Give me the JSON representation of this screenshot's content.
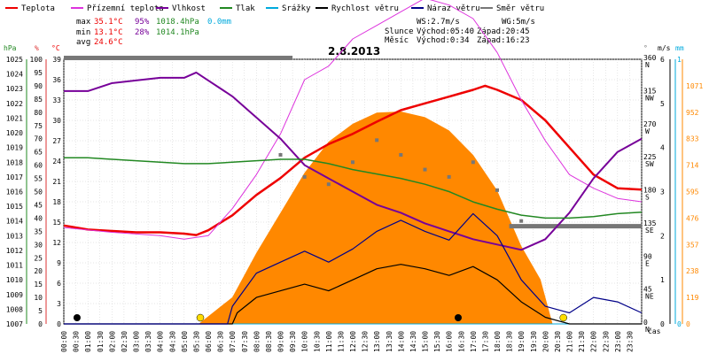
{
  "legend": [
    {
      "label": "Teplota",
      "color": "#ee0000"
    },
    {
      "label": "Přízemní teplota",
      "color": "#dd33dd"
    },
    {
      "label": "Vlhkost",
      "color": "#770099"
    },
    {
      "label": "Tlak",
      "color": "#228822"
    },
    {
      "label": "Srážky",
      "color": "#00aadd"
    },
    {
      "label": "Rychlost větru",
      "color": "#000000"
    },
    {
      "label": "Náraz větru",
      "color": "#000088"
    },
    {
      "label": "Směr větru",
      "color": "#777777"
    }
  ],
  "stats": {
    "max_label": "max",
    "max_temp": "35.1°C",
    "max_hum": "95%",
    "max_press": "1018.4hPa",
    "max_rain": "0.0mm",
    "min_label": "min",
    "min_temp": "13.1°C",
    "min_hum": "28%",
    "min_press": "1014.1hPa",
    "avg_label": "avg",
    "avg_temp": "24.6°C"
  },
  "wind_sun": {
    "ws": "WS:2.7m/s",
    "wg": "WG:5m/s",
    "sun_label": "Slunce",
    "sunrise": "Východ:05:40",
    "sunset": "Západ:20:45",
    "moon_label": "Měsíc",
    "moonrise": "Východ:0:34",
    "moonset": "Západ:16:23"
  },
  "date": "2.8.2013",
  "time_label": "čas",
  "colors": {
    "temp": "#ee0000",
    "ground": "#dd33dd",
    "hum": "#770099",
    "press": "#228822",
    "rain": "#00aadd",
    "wind": "#000000",
    "gust": "#000088",
    "dir": "#777777",
    "solar": "#ff8800",
    "solar_line": "#ff8800"
  },
  "chart_data": {
    "type": "line",
    "date": "2.8.2013",
    "x_ticks": [
      "00:00",
      "00:30",
      "01:00",
      "01:30",
      "02:00",
      "02:30",
      "03:00",
      "03:30",
      "04:00",
      "04:30",
      "05:00",
      "05:30",
      "06:00",
      "06:30",
      "07:00",
      "07:30",
      "08:00",
      "08:30",
      "09:00",
      "09:30",
      "10:00",
      "10:30",
      "11:00",
      "11:30",
      "12:00",
      "12:30",
      "13:00",
      "13:30",
      "14:00",
      "14:30",
      "15:00",
      "15:30",
      "16:00",
      "16:30",
      "17:00",
      "17:30",
      "18:00",
      "18:30",
      "19:00",
      "19:30",
      "20:00",
      "20:30",
      "21:00",
      "21:30",
      "22:00",
      "22:30",
      "23:00",
      "23:30"
    ],
    "axes": {
      "pressure": {
        "unit": "hPa",
        "ticks": [
          "1007",
          "1008",
          "1009",
          "1010",
          "1011",
          "1012",
          "1013",
          "1014",
          "1015",
          "1016",
          "1017",
          "1018",
          "1019",
          "1020",
          "1021",
          "1022",
          "1023",
          "1024",
          "1025"
        ]
      },
      "humidity": {
        "unit": "%",
        "ticks": [
          "0",
          "5",
          "10",
          "15",
          "20",
          "25",
          "30",
          "35",
          "40",
          "45",
          "50",
          "55",
          "60",
          "65",
          "70",
          "75",
          "80",
          "85",
          "90",
          "95",
          "100"
        ]
      },
      "temperature": {
        "unit": "°C",
        "ticks": [
          "0",
          "3",
          "6",
          "9",
          "12",
          "15",
          "18",
          "21",
          "24",
          "27",
          "30",
          "33",
          "36",
          "39"
        ]
      },
      "direction": {
        "unit": "°",
        "ticks": [
          {
            "v": "0",
            "c": "N"
          },
          {
            "v": "45",
            "c": "NE"
          },
          {
            "v": "90",
            "c": "E"
          },
          {
            "v": "135",
            "c": "SE"
          },
          {
            "v": "180",
            "c": "S"
          },
          {
            "v": "225",
            "c": "SW"
          },
          {
            "v": "270",
            "c": "W"
          },
          {
            "v": "315",
            "c": "NW"
          },
          {
            "v": "360",
            "c": "N"
          }
        ]
      },
      "wind": {
        "unit": "m/s",
        "ticks": [
          "0",
          "1",
          "2",
          "3",
          "4",
          "5",
          "6"
        ]
      },
      "rain": {
        "unit": "mm",
        "ticks": [
          "0",
          "1"
        ]
      },
      "solar": {
        "ticks": [
          "0",
          "119",
          "238",
          "357",
          "476",
          "595",
          "714",
          "833",
          "952",
          "1071"
        ]
      }
    },
    "series": [
      {
        "name": "Teplota",
        "unit": "°C",
        "points": [
          [
            0,
            14.5
          ],
          [
            1,
            13.9
          ],
          [
            2,
            13.7
          ],
          [
            3,
            13.5
          ],
          [
            4,
            13.5
          ],
          [
            5,
            13.3
          ],
          [
            5.5,
            13.1
          ],
          [
            6,
            13.8
          ],
          [
            7,
            16
          ],
          [
            8,
            19
          ],
          [
            9,
            21.5
          ],
          [
            10,
            24.5
          ],
          [
            11,
            26.5
          ],
          [
            12,
            28
          ],
          [
            13,
            29.8
          ],
          [
            14,
            31.5
          ],
          [
            15,
            32.5
          ],
          [
            16,
            33.5
          ],
          [
            17,
            34.5
          ],
          [
            17.5,
            35.1
          ],
          [
            18,
            34.5
          ],
          [
            19,
            33
          ],
          [
            20,
            30
          ],
          [
            21,
            26
          ],
          [
            22,
            22
          ],
          [
            23,
            20
          ],
          [
            24,
            19.8
          ]
        ]
      },
      {
        "name": "Přízemní teplota",
        "unit": "°C",
        "points": [
          [
            0,
            14.2
          ],
          [
            2,
            13.5
          ],
          [
            4,
            13
          ],
          [
            5,
            12.5
          ],
          [
            6,
            13
          ],
          [
            7,
            17
          ],
          [
            8,
            22
          ],
          [
            9,
            28
          ],
          [
            10,
            36
          ],
          [
            11,
            38
          ],
          [
            12,
            42
          ],
          [
            13,
            44
          ],
          [
            14,
            46
          ],
          [
            15,
            48
          ],
          [
            16,
            47
          ],
          [
            17,
            45
          ],
          [
            18,
            40
          ],
          [
            19,
            33
          ],
          [
            20,
            27
          ],
          [
            21,
            22
          ],
          [
            22,
            20
          ],
          [
            23,
            18.5
          ],
          [
            24,
            18
          ]
        ]
      },
      {
        "name": "Vlhkost",
        "unit": "%",
        "points": [
          [
            0,
            88
          ],
          [
            1,
            88
          ],
          [
            2,
            91
          ],
          [
            3,
            92
          ],
          [
            4,
            93
          ],
          [
            5,
            93
          ],
          [
            5.5,
            95
          ],
          [
            6,
            92
          ],
          [
            7,
            86
          ],
          [
            8,
            78
          ],
          [
            9,
            70
          ],
          [
            10,
            60
          ],
          [
            11,
            55
          ],
          [
            12,
            50
          ],
          [
            13,
            45
          ],
          [
            14,
            42
          ],
          [
            15,
            38
          ],
          [
            16,
            35
          ],
          [
            17,
            32
          ],
          [
            18,
            30
          ],
          [
            19,
            28
          ],
          [
            20,
            32
          ],
          [
            21,
            42
          ],
          [
            22,
            55
          ],
          [
            23,
            65
          ],
          [
            24,
            70
          ]
        ]
      },
      {
        "name": "Tlak",
        "unit": "hPa",
        "points": [
          [
            0,
            1018.3
          ],
          [
            1,
            1018.3
          ],
          [
            2,
            1018.2
          ],
          [
            3,
            1018.1
          ],
          [
            4,
            1018
          ],
          [
            5,
            1017.9
          ],
          [
            6,
            1017.9
          ],
          [
            7,
            1018
          ],
          [
            8,
            1018.1
          ],
          [
            9,
            1018.2
          ],
          [
            10,
            1018.2
          ],
          [
            11,
            1017.9
          ],
          [
            12,
            1017.5
          ],
          [
            13,
            1017.2
          ],
          [
            14,
            1016.9
          ],
          [
            15,
            1016.5
          ],
          [
            16,
            1016
          ],
          [
            17,
            1015.3
          ],
          [
            18,
            1014.8
          ],
          [
            19,
            1014.4
          ],
          [
            20,
            1014.2
          ],
          [
            21,
            1014.2
          ],
          [
            22,
            1014.3
          ],
          [
            23,
            1014.5
          ],
          [
            24,
            1014.6
          ]
        ]
      },
      {
        "name": "Srážky",
        "unit": "mm",
        "points": [
          [
            0,
            0
          ],
          [
            24,
            0
          ]
        ]
      },
      {
        "name": "Rychlost větru",
        "unit": "m/s",
        "points": [
          [
            0,
            0
          ],
          [
            7,
            0
          ],
          [
            7.2,
            0.5
          ],
          [
            8,
            1.2
          ],
          [
            9,
            1.5
          ],
          [
            10,
            1.8
          ],
          [
            11,
            1.5
          ],
          [
            12,
            2
          ],
          [
            13,
            2.5
          ],
          [
            14,
            2.7
          ],
          [
            15,
            2.5
          ],
          [
            16,
            2.2
          ],
          [
            17,
            2.6
          ],
          [
            18,
            2
          ],
          [
            19,
            1
          ],
          [
            20,
            0.3
          ],
          [
            21,
            0
          ],
          [
            22,
            0
          ],
          [
            23,
            0
          ],
          [
            24,
            0
          ]
        ]
      },
      {
        "name": "Náraz větru",
        "unit": "m/s",
        "points": [
          [
            0,
            0
          ],
          [
            6.8,
            0
          ],
          [
            7,
            0.8
          ],
          [
            8,
            2.3
          ],
          [
            9,
            2.8
          ],
          [
            10,
            3.3
          ],
          [
            11,
            2.8
          ],
          [
            12,
            3.4
          ],
          [
            13,
            4.2
          ],
          [
            14,
            4.7
          ],
          [
            15,
            4.2
          ],
          [
            16,
            3.8
          ],
          [
            17,
            5
          ],
          [
            18,
            4
          ],
          [
            19,
            2
          ],
          [
            20,
            0.8
          ],
          [
            21,
            0.5
          ],
          [
            22,
            1.2
          ],
          [
            23,
            1
          ],
          [
            24,
            0.5
          ]
        ]
      },
      {
        "name": "Směr větru",
        "unit": "°",
        "points": [
          [
            9,
            230
          ],
          [
            10,
            200
          ],
          [
            11,
            190
          ],
          [
            12,
            220
          ],
          [
            13,
            250
          ],
          [
            14,
            230
          ],
          [
            15,
            210
          ],
          [
            16,
            200
          ],
          [
            17,
            220
          ],
          [
            18,
            182
          ],
          [
            19,
            140
          ]
        ]
      }
    ],
    "solar": {
      "unit": "W/m²",
      "points": [
        [
          5.6,
          0
        ],
        [
          7,
          120
        ],
        [
          8,
          320
        ],
        [
          9,
          500
        ],
        [
          10,
          680
        ],
        [
          11,
          820
        ],
        [
          12,
          900
        ],
        [
          13,
          950
        ],
        [
          14,
          955
        ],
        [
          15,
          930
        ],
        [
          16,
          870
        ],
        [
          17,
          760
        ],
        [
          18,
          600
        ],
        [
          19,
          350
        ],
        [
          19.8,
          200
        ],
        [
          20.3,
          0
        ]
      ]
    },
    "bars": [
      {
        "label": "Teplota max bar",
        "y_unit": "°C",
        "y": 39.2,
        "x_from": 0,
        "x_to": 9.5
      },
      {
        "label": "Tlak bar",
        "y_unit": "°C",
        "y": 14.4,
        "x_from": 18.5,
        "x_to": 24
      }
    ]
  }
}
